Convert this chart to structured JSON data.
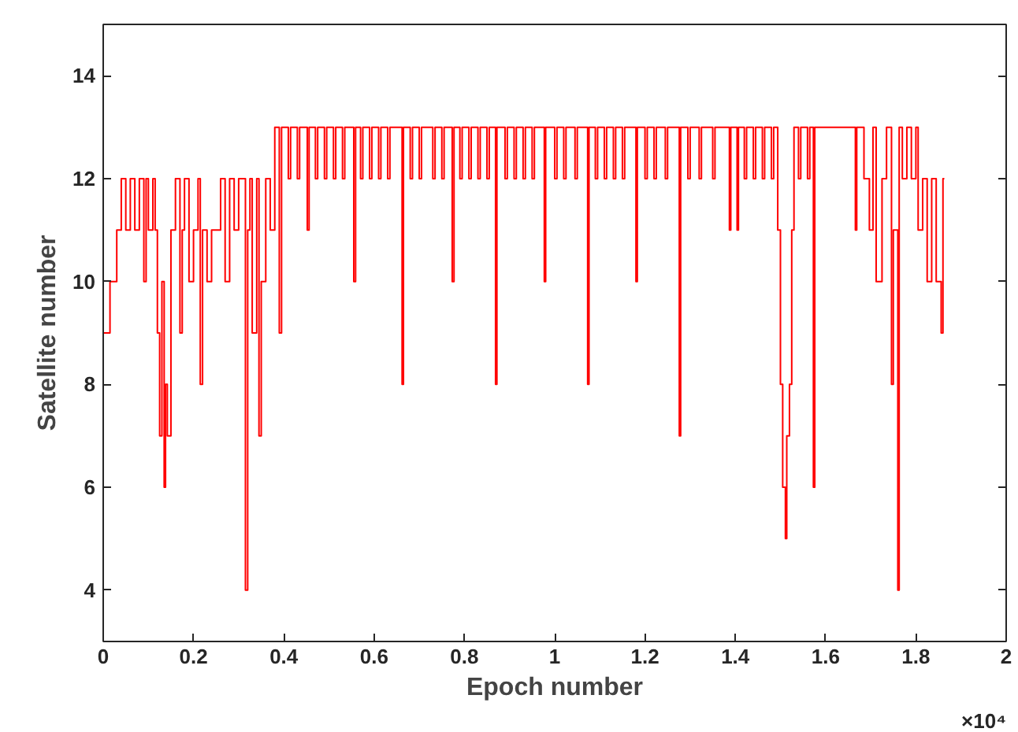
{
  "chart_data": {
    "type": "step",
    "xlabel": "Epoch number",
    "ylabel": "Satellite number",
    "x": [
      0,
      0.015,
      0.03,
      0.04,
      0.05,
      0.06,
      0.07,
      0.08,
      0.09,
      0.095,
      0.1,
      0.11,
      0.115,
      0.12,
      0.125,
      0.13,
      0.135,
      0.138,
      0.142,
      0.15,
      0.16,
      0.17,
      0.175,
      0.18,
      0.19,
      0.2,
      0.21,
      0.215,
      0.22,
      0.23,
      0.24,
      0.26,
      0.27,
      0.28,
      0.29,
      0.3,
      0.315,
      0.32,
      0.325,
      0.33,
      0.34,
      0.345,
      0.35,
      0.36,
      0.37,
      0.38,
      0.39,
      0.395,
      0.41,
      0.415,
      0.43,
      0.435,
      0.452,
      0.456,
      0.47,
      0.475,
      0.49,
      0.495,
      0.51,
      0.515,
      0.53,
      0.535,
      0.555,
      0.559,
      0.57,
      0.575,
      0.59,
      0.595,
      0.61,
      0.615,
      0.63,
      0.635,
      0.662,
      0.665,
      0.68,
      0.685,
      0.7,
      0.705,
      0.73,
      0.735,
      0.75,
      0.755,
      0.773,
      0.777,
      0.79,
      0.795,
      0.81,
      0.815,
      0.83,
      0.835,
      0.85,
      0.855,
      0.869,
      0.872,
      0.89,
      0.895,
      0.91,
      0.915,
      0.93,
      0.935,
      0.95,
      0.955,
      0.977,
      0.98,
      1.0,
      1.005,
      1.02,
      1.025,
      1.045,
      1.05,
      1.073,
      1.076,
      1.09,
      1.095,
      1.11,
      1.115,
      1.13,
      1.135,
      1.15,
      1.155,
      1.18,
      1.183,
      1.2,
      1.205,
      1.22,
      1.225,
      1.245,
      1.25,
      1.276,
      1.279,
      1.295,
      1.3,
      1.32,
      1.325,
      1.35,
      1.355,
      1.387,
      1.39,
      1.404,
      1.407,
      1.42,
      1.425,
      1.44,
      1.445,
      1.46,
      1.465,
      1.48,
      1.485,
      1.494,
      1.5,
      1.505,
      1.511,
      1.514,
      1.52,
      1.525,
      1.53,
      1.54,
      1.545,
      1.56,
      1.565,
      1.573,
      1.576,
      1.666,
      1.669,
      1.685,
      1.697,
      1.705,
      1.712,
      1.725,
      1.735,
      1.746,
      1.75,
      1.76,
      1.763,
      1.77,
      1.78,
      1.79,
      1.8,
      1.805,
      1.815,
      1.825,
      1.835,
      1.845,
      1.856,
      1.86,
      1.863
    ],
    "series": [
      {
        "color": "#ff0000",
        "values": [
          9,
          10,
          11,
          12,
          11,
          12,
          11,
          12,
          10,
          12,
          11,
          12,
          11,
          9,
          7,
          10,
          6,
          8,
          7,
          11,
          12,
          9,
          11,
          12,
          10,
          11,
          12,
          8,
          11,
          10,
          11,
          12,
          10,
          12,
          11,
          12,
          4,
          11,
          12,
          9,
          12,
          7,
          10,
          12,
          11,
          13,
          9,
          13,
          12,
          13,
          12,
          13,
          11,
          13,
          12,
          13,
          12,
          13,
          12,
          13,
          12,
          13,
          10,
          13,
          12,
          13,
          12,
          13,
          12,
          13,
          12,
          13,
          8,
          13,
          12,
          13,
          12,
          13,
          12,
          13,
          12,
          13,
          10,
          13,
          12,
          13,
          12,
          13,
          12,
          13,
          12,
          13,
          8,
          13,
          12,
          13,
          12,
          13,
          12,
          13,
          12,
          13,
          10,
          13,
          12,
          13,
          12,
          13,
          12,
          13,
          8,
          13,
          12,
          13,
          12,
          13,
          12,
          13,
          12,
          13,
          10,
          13,
          12,
          13,
          12,
          13,
          12,
          13,
          7,
          13,
          12,
          13,
          12,
          13,
          12,
          13,
          11,
          13,
          11,
          13,
          12,
          13,
          12,
          13,
          12,
          13,
          12,
          13,
          11,
          8,
          6,
          5,
          7,
          8,
          11,
          13,
          12,
          13,
          12,
          13,
          6,
          13,
          11,
          13,
          12,
          11,
          13,
          10,
          12,
          13,
          8,
          11,
          4,
          13,
          12,
          13,
          12,
          13,
          11,
          12,
          10,
          12,
          10,
          9,
          12,
          12
        ]
      }
    ],
    "xlim": [
      0,
      2
    ],
    "ylim": [
      3,
      15
    ],
    "xticks": [
      0,
      0.2,
      0.4,
      0.6,
      0.8,
      1,
      1.2,
      1.4,
      1.6,
      1.8,
      2
    ],
    "yticks": [
      4,
      6,
      8,
      10,
      12,
      14
    ],
    "annotations": [
      "×10⁴"
    ],
    "grid": false
  }
}
